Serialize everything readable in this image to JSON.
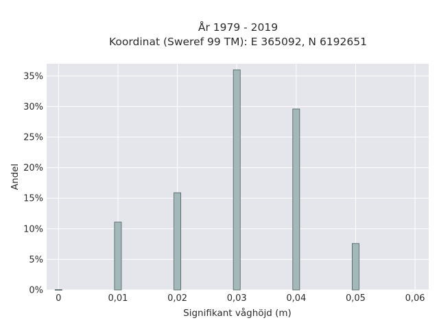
{
  "chart_data": {
    "type": "bar",
    "title_lines": [
      "År 1979 - 2019",
      "Koordinat (Sweref 99 TM): E 365092, N 6192651"
    ],
    "xlabel": "Signifikant våghöjd (m)",
    "ylabel": "Andel",
    "x_ticks": [
      "0",
      "0,01",
      "0,02",
      "0,03",
      "0,04",
      "0,05",
      "0,06"
    ],
    "y_ticks": [
      "0%",
      "5%",
      "10%",
      "15%",
      "20%",
      "25%",
      "30%",
      "35%"
    ],
    "xlim": [
      -0.002,
      0.0623
    ],
    "ylim": [
      0,
      37
    ],
    "grid": true,
    "x": [
      0,
      0.01,
      0.02,
      0.03,
      0.04,
      0.05
    ],
    "values": [
      0.05,
      11.1,
      15.9,
      36.0,
      29.6,
      7.6
    ],
    "colors": {
      "plot_bg": "#e5e5ec",
      "grid": "#ffffff",
      "bar_fill": "#a3b8b8",
      "bar_stroke": "#4a5a5a"
    }
  }
}
